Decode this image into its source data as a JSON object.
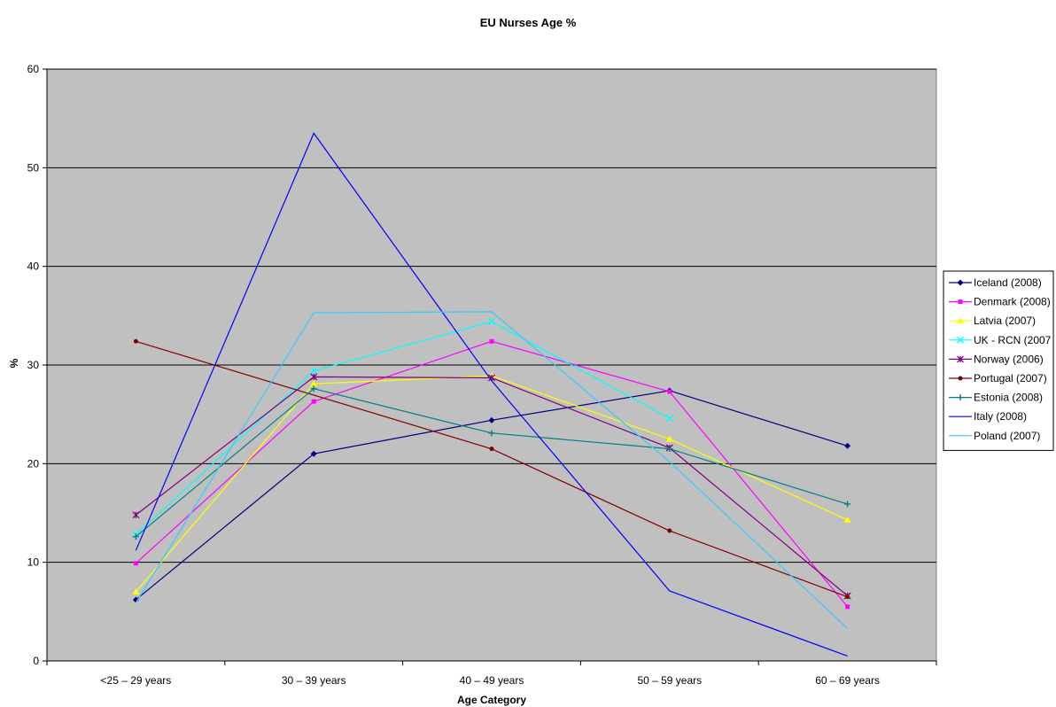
{
  "chart_data": {
    "type": "line",
    "title": "EU Nurses Age %",
    "xlabel": "Age Category",
    "ylabel": "%",
    "ylim": [
      0,
      60
    ],
    "yticks": [
      0,
      10,
      20,
      30,
      40,
      50,
      60
    ],
    "grid": true,
    "legend": "right",
    "plot_background": "#c0c0c0",
    "categories": [
      "<25 – 29 years",
      "30 – 39 years",
      "40 – 49 years",
      "50 – 59 years",
      "60 – 69 years"
    ],
    "series": [
      {
        "name": "Iceland (2008)",
        "color": "#000080",
        "marker": "diamond",
        "values": [
          6.2,
          21.0,
          24.4,
          27.4,
          21.8
        ]
      },
      {
        "name": "Denmark (2008)",
        "color": "#ff00ff",
        "marker": "square",
        "values": [
          9.9,
          26.3,
          32.4,
          27.3,
          5.5
        ]
      },
      {
        "name": "Latvia (2007)",
        "color": "#ffff00",
        "marker": "triangle",
        "values": [
          7.0,
          28.1,
          28.9,
          22.5,
          14.3
        ]
      },
      {
        "name": "UK - RCN (2007",
        "color": "#00ffff",
        "marker": "x",
        "values": [
          12.8,
          29.4,
          34.4,
          24.6,
          null
        ]
      },
      {
        "name": "Norway (2006)",
        "color": "#800080",
        "marker": "star",
        "values": [
          14.8,
          28.8,
          28.7,
          21.6,
          6.6
        ]
      },
      {
        "name": "Portugal (2007)",
        "color": "#800000",
        "marker": "circle",
        "values": [
          32.4,
          null,
          21.5,
          13.2,
          6.5
        ]
      },
      {
        "name": "Estonia (2008)",
        "color": "#008080",
        "marker": "plus",
        "values": [
          12.6,
          27.6,
          23.1,
          21.5,
          15.9
        ]
      },
      {
        "name": "Italy (2008)",
        "color": "#0000ff",
        "marker": "none",
        "values": [
          11.2,
          53.5,
          28.4,
          7.1,
          0.5
        ]
      },
      {
        "name": "Poland (2007)",
        "color": "#33ccff",
        "marker": "none",
        "values": [
          5.9,
          35.3,
          35.4,
          20.2,
          3.3
        ]
      }
    ]
  }
}
